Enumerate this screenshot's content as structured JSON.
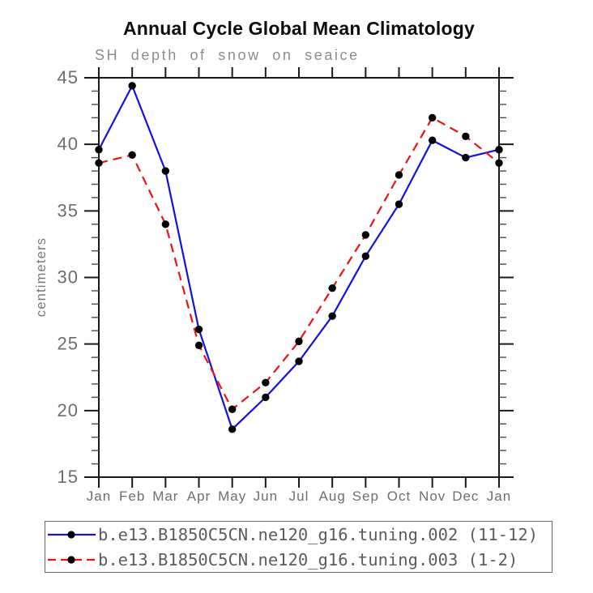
{
  "header": {
    "title": "Annual Cycle Global Mean Climatology",
    "subtitle": "SH depth of snow on seaice"
  },
  "chart_data": {
    "type": "line",
    "title": "Annual Cycle Global Mean Climatology",
    "subtitle": "SH depth of snow on seaice",
    "categories": [
      "Jan",
      "Feb",
      "Mar",
      "Apr",
      "May",
      "Jun",
      "Jul",
      "Aug",
      "Sep",
      "Oct",
      "Nov",
      "Dec",
      "Jan"
    ],
    "xlabel": "",
    "ylabel": "centimeters",
    "ylim": [
      15,
      45
    ],
    "yticks_major": [
      15,
      20,
      25,
      30,
      35,
      40,
      45
    ],
    "ytick_minor_step": 1,
    "grid": false,
    "legend_position": "bottom",
    "series": [
      {
        "name": "b.e13.B1850C5CN.ne120_g16.tuning.002 (11-12)",
        "color": "#1212e0",
        "line_style": "solid",
        "marker": "circle",
        "marker_color": "#000000",
        "values": [
          39.6,
          44.4,
          38.0,
          26.1,
          18.6,
          21.0,
          23.7,
          27.1,
          31.6,
          35.5,
          40.3,
          39.0,
          39.6
        ]
      },
      {
        "name": "b.e13.B1850C5CN.ne120_g16.tuning.003 (1-2)",
        "color": "#ee1212",
        "line_style": "dashed",
        "marker": "circle",
        "marker_color": "#000000",
        "values": [
          38.6,
          39.2,
          34.0,
          24.9,
          20.1,
          22.1,
          25.2,
          29.2,
          33.2,
          37.7,
          42.0,
          40.6,
          38.6
        ]
      }
    ],
    "axis_color": "#1a1a1a",
    "tick_label_color": "#6e6e6e"
  }
}
